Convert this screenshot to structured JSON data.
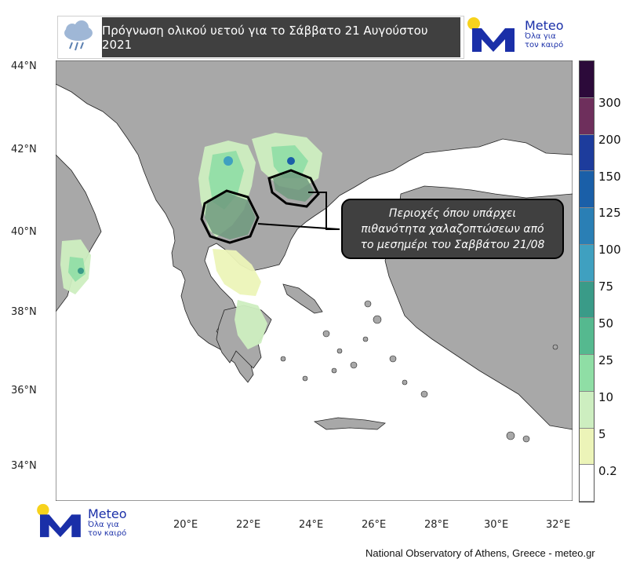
{
  "header": {
    "title": "Πρόγνωση ολικού υετού για το Σάββατο 21 Αυγούστου 2021",
    "weather_icon": "rain-cloud-icon"
  },
  "logo_top": {
    "brand": "Meteo",
    "tagline_1": "Όλα για",
    "tagline_2": "τον καιρό"
  },
  "logo_bottom": {
    "brand": "Meteo",
    "tagline_1": "Όλα για",
    "tagline_2": "τον καιρό"
  },
  "map": {
    "lat_labels": [
      "44°N",
      "42°N",
      "40°N",
      "38°N",
      "36°N",
      "34°N"
    ],
    "lon_labels": [
      "20°E",
      "22°E",
      "24°E",
      "26°E",
      "28°E",
      "30°E",
      "32°E"
    ],
    "callout_lines": [
      "Περιοχές όπου υπάρχει",
      "πιθανότητα χαλαζοπτώσεων από",
      "το μεσημέρι του Σαββάτου 21/08"
    ]
  },
  "colorbar": {
    "labels": [
      "300",
      "200",
      "150",
      "125",
      "100",
      "75",
      "50",
      "25",
      "10",
      "5",
      "0.2"
    ],
    "colors": [
      "#2c0a3a",
      "#6e2f5c",
      "#1d3c9c",
      "#1a5fa8",
      "#2a7fb5",
      "#3fa0c0",
      "#3a9b88",
      "#55b98f",
      "#8fdea5",
      "#cdeec0",
      "#ecf4b8",
      "#ffffff"
    ]
  },
  "footer": "National Observatory of Athens, Greece - meteo.gr",
  "colors": {
    "land": "#a8a8a8",
    "sea": "#ffffff",
    "title_bg": "#404040",
    "brand": "#1a2fa8",
    "sun": "#f7d21c"
  }
}
